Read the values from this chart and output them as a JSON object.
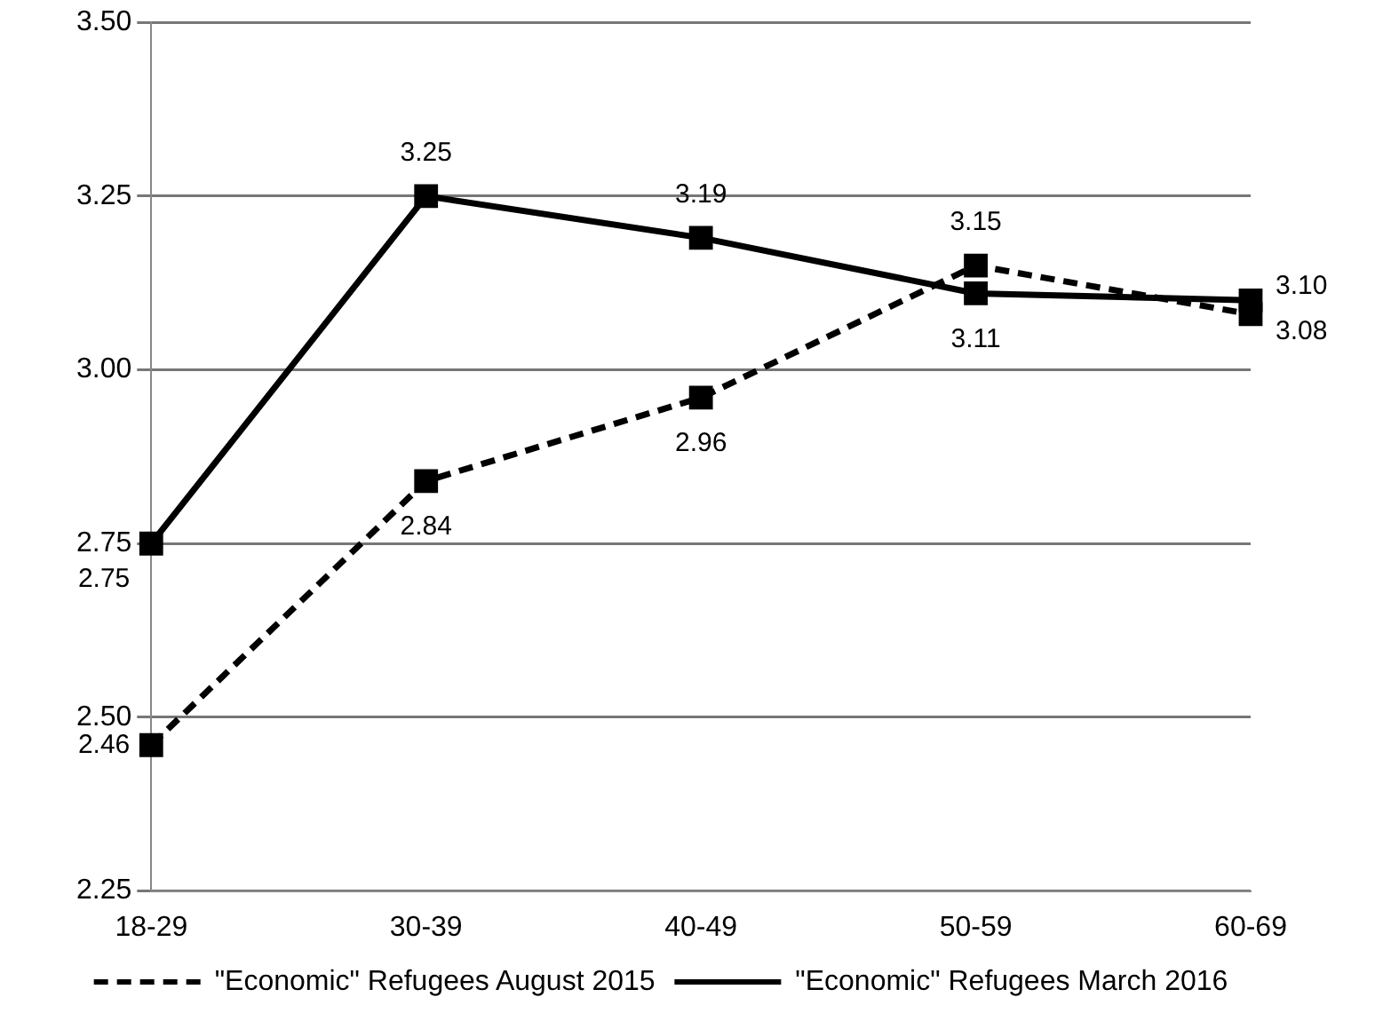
{
  "chart_data": {
    "type": "line",
    "categories": [
      "18-29",
      "30-39",
      "40-49",
      "50-59",
      "60-69"
    ],
    "series": [
      {
        "name": "\"Economic\" Refugees August 2015",
        "color": "#000000",
        "line_style": "dashed",
        "values": [
          2.46,
          2.84,
          2.96,
          3.15,
          3.08
        ],
        "value_labels": [
          "2.46",
          "2.84",
          "2.96",
          "3.15",
          "3.08"
        ]
      },
      {
        "name": "\"Economic\" Refugees March 2016",
        "color": "#000000",
        "line_style": "solid",
        "values": [
          2.75,
          3.25,
          3.19,
          3.11,
          3.1
        ],
        "value_labels": [
          "2.75",
          "3.25",
          "3.19",
          "3.11",
          "3.10"
        ]
      }
    ],
    "ylim": [
      2.25,
      3.5
    ],
    "yticks": [
      {
        "value": 2.25,
        "label": "2.25"
      },
      {
        "value": 2.5,
        "label": "2.50"
      },
      {
        "value": 2.75,
        "label": "2.75"
      },
      {
        "value": 3,
        "label": "3.00"
      },
      {
        "value": 3.25,
        "label": "3.25"
      },
      {
        "value": 3.5,
        "label": "3.50"
      }
    ],
    "grid": "y",
    "legend": "bottom",
    "marker": "square"
  }
}
